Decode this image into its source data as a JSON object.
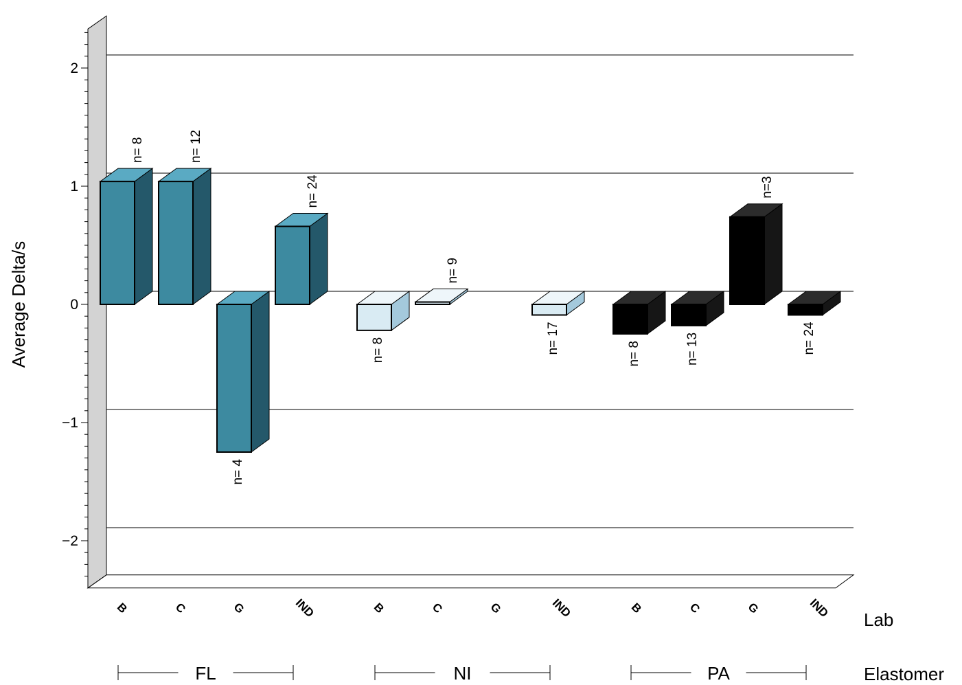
{
  "chart_data": {
    "type": "bar",
    "ylabel": "Average Delta/s",
    "ylim": [
      -2.4,
      2.4
    ],
    "yticks": [
      -2,
      -1,
      0,
      1,
      2
    ],
    "ytick_labels": [
      "−2",
      "−1",
      "0",
      "1",
      "2"
    ],
    "lab_axis_label": "Lab",
    "elastomer_axis_label": "Elastomer",
    "grid": true,
    "colors": {
      "FL": {
        "front": "#3d8aa0",
        "side": "#24586a",
        "top": "#5aaac3"
      },
      "NI": {
        "front": "#d9ebf3",
        "side": "#a4c9dc",
        "top": "#eef6fa"
      },
      "PA": {
        "front": "#000000",
        "side": "#161616",
        "top": "#2c2c2c"
      }
    },
    "groups": [
      {
        "name": "FL",
        "bars": [
          {
            "lab": "B",
            "value": 1.04,
            "n_label": "n= 8"
          },
          {
            "lab": "C",
            "value": 1.04,
            "n_label": "n= 12"
          },
          {
            "lab": "G",
            "value": -1.25,
            "n_label": "n= 4"
          },
          {
            "lab": "IND",
            "value": 0.66,
            "n_label": "n= 24"
          }
        ]
      },
      {
        "name": "NI",
        "bars": [
          {
            "lab": "B",
            "value": -0.22,
            "n_label": "n= 8"
          },
          {
            "lab": "C",
            "value": 0.02,
            "n_label": "n= 9"
          },
          {
            "lab": "G",
            "value": null,
            "n_label": ""
          },
          {
            "lab": "IND",
            "value": -0.09,
            "n_label": "n= 17"
          }
        ]
      },
      {
        "name": "PA",
        "bars": [
          {
            "lab": "B",
            "value": -0.25,
            "n_label": "n= 8"
          },
          {
            "lab": "C",
            "value": -0.18,
            "n_label": "n= 13"
          },
          {
            "lab": "G",
            "value": 0.74,
            "n_label": "n=3"
          },
          {
            "lab": "IND",
            "value": -0.09,
            "n_label": "n= 24"
          }
        ]
      }
    ]
  }
}
